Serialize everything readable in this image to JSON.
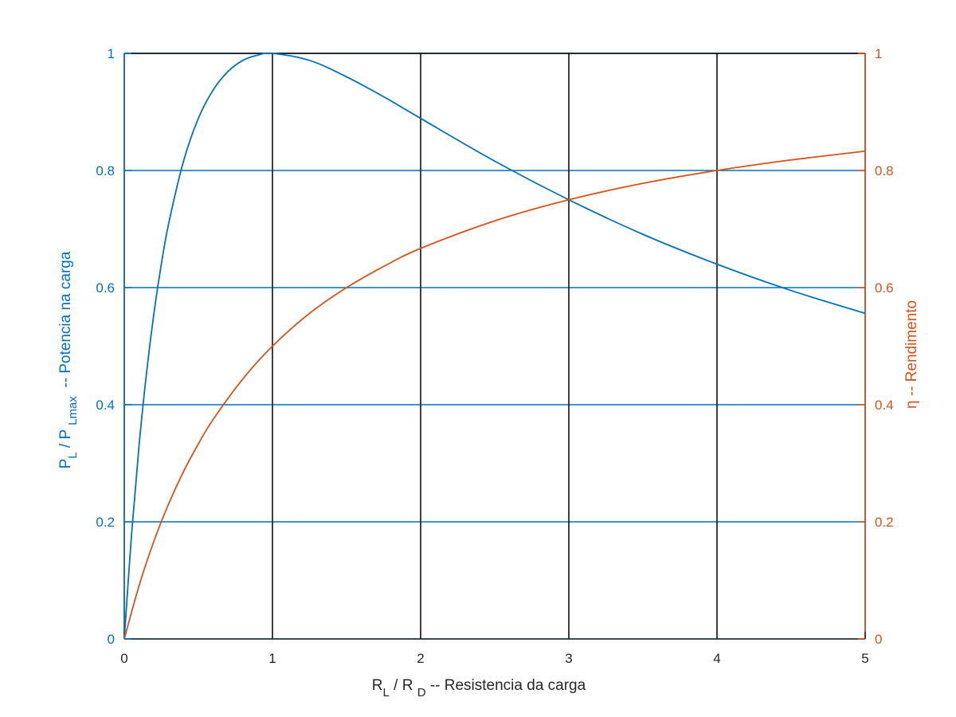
{
  "chart_data": {
    "type": "line",
    "title": "",
    "xlabel": {
      "main": "R",
      "sub1": "L",
      "mid": " / R ",
      "sub2": "D",
      "tail": " -- Resistencia da carga"
    },
    "ylabel_left": {
      "main": "P",
      "sub1": "L",
      "mid": " / P ",
      "sub2": "Lmax",
      "tail": "  -- Potencia na carga"
    },
    "ylabel_right": "η -- Rendimento",
    "xlim": [
      0,
      5
    ],
    "ylim_left": [
      0,
      1
    ],
    "ylim_right": [
      0,
      1
    ],
    "x_ticks": [
      "0",
      "1",
      "2",
      "3",
      "4",
      "5"
    ],
    "y_ticks_left": [
      "0",
      "0.2",
      "0.4",
      "0.6",
      "0.8",
      "1"
    ],
    "y_ticks_right": [
      "0",
      "0.2",
      "0.4",
      "0.6",
      "0.8",
      "1"
    ],
    "grid": true,
    "colors": {
      "left_axis": "#0072bd",
      "right_axis": "#d95319",
      "x_axis": "#262626",
      "vertical_grid": "#000000"
    },
    "series": [
      {
        "axis": "left",
        "color": "#0072bd",
        "x": [
          0,
          0.05,
          0.1,
          0.15,
          0.2,
          0.25,
          0.3,
          0.4,
          0.5,
          0.6,
          0.7,
          0.8,
          0.9,
          1.0,
          1.25,
          1.5,
          1.75,
          2.0,
          2.5,
          3.0,
          3.5,
          4.0,
          4.5,
          5.0
        ],
        "values": [
          0,
          0.181,
          0.331,
          0.454,
          0.556,
          0.64,
          0.71,
          0.816,
          0.889,
          0.9375,
          0.969,
          0.988,
          0.997,
          1.0,
          0.988,
          0.96,
          0.926,
          0.889,
          0.816,
          0.75,
          0.691,
          0.64,
          0.595,
          0.556
        ]
      },
      {
        "axis": "right",
        "color": "#d95319",
        "x": [
          0,
          0.1,
          0.2,
          0.3,
          0.4,
          0.5,
          0.6,
          0.8,
          1.0,
          1.25,
          1.5,
          1.75,
          2.0,
          2.5,
          3.0,
          3.5,
          4.0,
          4.5,
          5.0
        ],
        "values": [
          0,
          0.091,
          0.167,
          0.231,
          0.286,
          0.333,
          0.375,
          0.444,
          0.5,
          0.556,
          0.6,
          0.636,
          0.667,
          0.714,
          0.75,
          0.778,
          0.8,
          0.818,
          0.833
        ]
      }
    ]
  }
}
